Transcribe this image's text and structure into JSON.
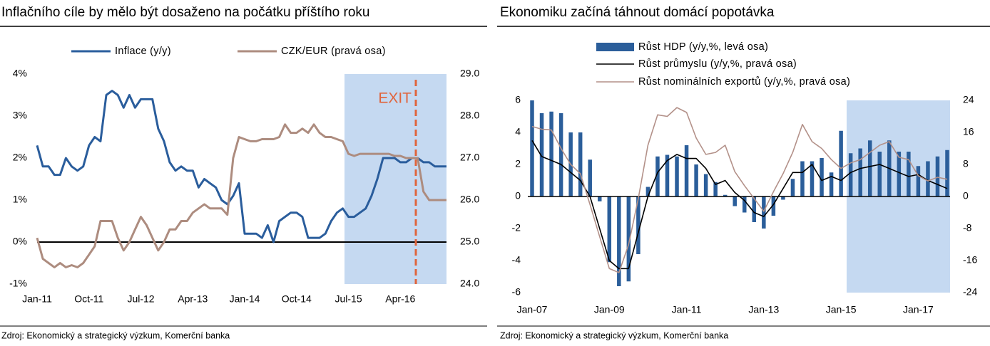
{
  "chart_data": [
    {
      "type": "line",
      "title": "Inflačního cíle by mělo být dosaženo na počátku příštího roku",
      "source": "Zdroj: Ekonomický a strategický výzkum, Komerční banka",
      "annotation": "EXIT",
      "categories": [
        "Jan-11",
        null,
        null,
        null,
        null,
        null,
        null,
        null,
        null,
        "Oct-11",
        null,
        null,
        null,
        null,
        null,
        null,
        null,
        null,
        "Jul-12",
        null,
        null,
        null,
        null,
        null,
        null,
        null,
        null,
        "Apr-13",
        null,
        null,
        null,
        null,
        null,
        null,
        null,
        null,
        "Jan-14",
        null,
        null,
        null,
        null,
        null,
        null,
        null,
        null,
        "Oct-14",
        null,
        null,
        null,
        null,
        null,
        null,
        null,
        null,
        "Jul-15",
        null,
        null,
        null,
        null,
        null,
        null,
        null,
        null,
        "Apr-16",
        null,
        null,
        null,
        null,
        null,
        null,
        null,
        null
      ],
      "ylim": [
        -1,
        4
      ],
      "yticks": [
        {
          "value": -1,
          "label": "-1%"
        },
        {
          "value": 0,
          "label": "0%"
        },
        {
          "value": 1,
          "label": "1%"
        },
        {
          "value": 2,
          "label": "2%"
        },
        {
          "value": 3,
          "label": "3%"
        },
        {
          "value": 4,
          "label": "4%"
        }
      ],
      "y2lim": [
        24,
        29
      ],
      "y2ticks": [
        {
          "value": 24,
          "label": "24.0"
        },
        {
          "value": 25,
          "label": "25.0"
        },
        {
          "value": 26,
          "label": "26.0"
        },
        {
          "value": 27,
          "label": "27.0"
        },
        {
          "value": 28,
          "label": "28.0"
        },
        {
          "value": 29,
          "label": "29.0"
        }
      ],
      "series": [
        {
          "name": "Inflace (y/y)",
          "color": "#2a5d9c",
          "values": [
            2.3,
            1.8,
            1.8,
            1.6,
            1.6,
            2.0,
            1.8,
            1.7,
            1.8,
            2.3,
            2.5,
            2.4,
            3.5,
            3.6,
            3.5,
            3.2,
            3.5,
            3.2,
            3.4,
            3.4,
            3.4,
            2.7,
            2.4,
            1.9,
            1.7,
            1.8,
            1.7,
            1.7,
            1.3,
            1.5,
            1.4,
            1.3,
            1.0,
            0.9,
            1.1,
            1.4,
            0.2,
            0.2,
            0.2,
            0.1,
            0.4,
            0.0,
            0.5,
            0.6,
            0.7,
            0.7,
            0.6,
            0.1,
            0.1,
            0.1,
            0.2,
            0.5,
            0.7,
            0.8,
            0.6,
            0.6,
            0.7,
            0.8,
            1.1,
            1.5,
            2.0,
            2.0,
            2.0,
            1.9,
            1.9,
            2.0,
            2.0,
            1.9,
            1.9,
            1.8,
            1.8,
            1.8
          ]
        },
        {
          "name": "CZK/EUR (pravá osa)",
          "color": "#ad8c7f",
          "axis": "y2",
          "values": [
            25.1,
            24.6,
            24.5,
            24.4,
            24.5,
            24.4,
            24.45,
            24.4,
            24.5,
            24.7,
            24.9,
            25.5,
            25.5,
            25.5,
            25.1,
            24.8,
            25.0,
            25.3,
            25.6,
            25.4,
            25.1,
            24.8,
            25.0,
            25.3,
            25.3,
            25.5,
            25.5,
            25.7,
            25.8,
            25.9,
            25.8,
            25.8,
            25.8,
            25.65,
            27.0,
            27.5,
            27.45,
            27.4,
            27.4,
            27.45,
            27.45,
            27.45,
            27.5,
            27.8,
            27.6,
            27.6,
            27.7,
            27.6,
            27.8,
            27.6,
            27.5,
            27.5,
            27.45,
            27.4,
            27.1,
            27.05,
            27.1,
            27.1,
            27.1,
            27.1,
            27.1,
            27.1,
            27.05,
            27.05,
            27.0,
            27.0,
            27.0,
            26.2,
            26.0,
            26.0,
            26.0,
            26.0
          ]
        }
      ]
    },
    {
      "type": "combo",
      "title": "Ekonomiku začíná táhnout domácí popotávka",
      "source": "Zdroj: Ekonomický a strategický výzkum, Komerční banka",
      "categories": [
        "Jan-07",
        null,
        null,
        null,
        null,
        null,
        null,
        null,
        "Jan-09",
        null,
        null,
        null,
        null,
        null,
        null,
        null,
        "Jan-11",
        null,
        null,
        null,
        null,
        null,
        null,
        null,
        "Jan-13",
        null,
        null,
        null,
        null,
        null,
        null,
        null,
        "Jan-15",
        null,
        null,
        null,
        null,
        null,
        null,
        null,
        "Jan-17",
        null,
        null,
        null
      ],
      "ylim": [
        -6,
        6
      ],
      "yticks": [
        -6,
        -4,
        -2,
        0,
        2,
        4,
        6
      ],
      "y2lim": [
        -24,
        24
      ],
      "y2ticks": [
        -24,
        -16,
        -8,
        0,
        8,
        16,
        24
      ],
      "series": [
        {
          "name": "Růst HDP (y/y,%, levá osa)",
          "type": "bar",
          "color": "#2b5e9a",
          "values": [
            6.0,
            5.2,
            5.3,
            5.2,
            4.0,
            4.0,
            2.3,
            -0.3,
            -4.1,
            -5.6,
            -5.3,
            -3.6,
            0.6,
            2.5,
            2.6,
            2.5,
            3.2,
            2.0,
            1.4,
            0.9,
            0.1,
            -0.6,
            -1.0,
            -1.6,
            -2.0,
            -1.2,
            -0.2,
            1.1,
            2.2,
            2.2,
            2.4,
            1.5,
            4.1,
            2.7,
            3.0,
            3.5,
            2.8,
            3.5,
            2.8,
            2.8,
            1.9,
            2.2,
            2.5,
            2.9
          ]
        },
        {
          "name": "Růst průmyslu (y/y,%, pravá osa)",
          "type": "line",
          "color": "#000000",
          "axis": "y2",
          "values": [
            14,
            10,
            9,
            8,
            6,
            4,
            0,
            -8,
            -16,
            -18,
            -18,
            -9,
            0,
            6,
            9,
            10.5,
            9.5,
            9.5,
            7,
            3,
            4,
            1,
            -1,
            -4,
            -5,
            -2,
            2,
            6,
            6,
            8,
            4,
            5,
            4,
            6,
            7,
            7.5,
            8,
            7,
            6,
            5,
            5.5,
            4,
            3,
            2
          ]
        },
        {
          "name": "Růst nominálních exportů (y/y,%, pravá osa)",
          "type": "line",
          "color": "#b39189",
          "axis": "y2",
          "values": [
            17.5,
            16.8,
            16.6,
            12,
            8,
            5.7,
            -2,
            -10,
            -18,
            -19,
            -12,
            -0.5,
            12.8,
            20.4,
            20,
            22.2,
            21,
            14.6,
            10.5,
            11,
            12.8,
            6.2,
            2.7,
            -0.5,
            -3.7,
            1.2,
            5.7,
            11,
            18,
            13.7,
            12,
            9.2,
            7,
            8.4,
            9.2,
            11,
            12.8,
            13.7,
            9.8,
            9.2,
            5.2,
            3.9,
            4.8,
            4.3
          ]
        }
      ]
    }
  ]
}
